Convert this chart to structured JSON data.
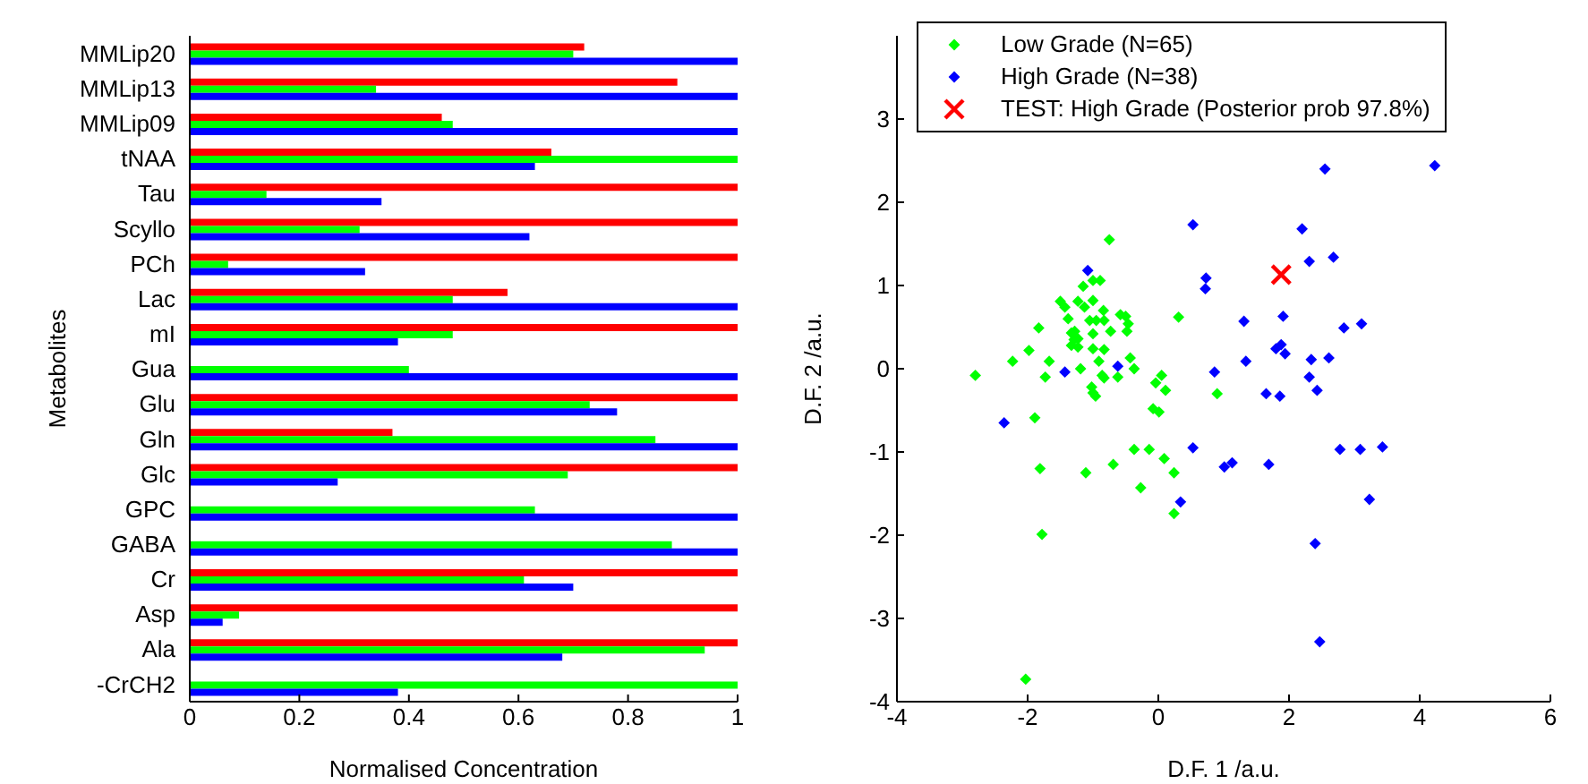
{
  "chart_data": [
    {
      "type": "bar",
      "orientation": "horizontal",
      "xlabel": "Normalised Concentration",
      "ylabel": "Metabolites",
      "categories": [
        "MMLip20",
        "MMLip13",
        "MMLip09",
        "tNAA",
        "Tau",
        "Scyllo",
        "PCh",
        "Lac",
        "mI",
        "Gua",
        "Glu",
        "Gln",
        "Glc",
        "GPC",
        "GABA",
        "Cr",
        "Asp",
        "Ala",
        "-CrCH2"
      ],
      "series": [
        {
          "color": "#ff0000",
          "values": [
            0.72,
            0.89,
            0.46,
            0.66,
            1,
            1,
            1,
            0.58,
            1,
            null,
            1,
            0.37,
            1,
            null,
            null,
            1,
            1,
            1,
            null
          ]
        },
        {
          "color": "#00ff00",
          "values": [
            0.7,
            0.34,
            0.48,
            1,
            0.14,
            0.31,
            0.07,
            0.48,
            0.48,
            0.4,
            0.73,
            0.85,
            0.69,
            0.63,
            0.88,
            0.61,
            0.09,
            0.94,
            1
          ]
        },
        {
          "color": "#0000ff",
          "values": [
            1,
            1,
            1,
            0.63,
            0.35,
            0.62,
            0.32,
            1,
            0.38,
            1,
            0.78,
            1,
            0.27,
            1,
            1,
            0.7,
            0.06,
            0.68,
            0.38
          ]
        }
      ],
      "xlim": [
        0,
        1
      ],
      "xticks": [
        0,
        0.2,
        0.4,
        0.6,
        0.8,
        1
      ],
      "grid": false,
      "legend": false
    },
    {
      "type": "scatter",
      "xlabel": "D.F. 1 /a.u.",
      "ylabel": "D.F. 2 /a.u.",
      "xlim": [
        -4,
        6
      ],
      "xticks": [
        -4,
        -2,
        0,
        2,
        4,
        6
      ],
      "ylim": [
        -4,
        4
      ],
      "yticks": [
        -4,
        -3,
        -2,
        -1,
        0,
        1,
        2,
        3
      ],
      "grid": false,
      "legend": "top",
      "series": [
        {
          "name": "Low Grade (N=65)",
          "color": "#00ff00",
          "marker": "diamond",
          "x": [
            -0.75,
            -1.15,
            -1.0,
            -0.89,
            -1.5,
            -1.43,
            -1.23,
            -1.0,
            -1.13,
            -0.84,
            -1.38,
            -1.05,
            -0.95,
            -0.83,
            -0.58,
            -0.5,
            -0.46,
            -0.73,
            -0.48,
            -1.83,
            -1.33,
            -1.28,
            -1.0,
            -1.29,
            -1.23,
            -1.33,
            -1.23,
            -1.0,
            -0.83,
            -1.98,
            -0.91,
            -0.43,
            -0.37,
            -1.19,
            -0.86,
            -0.83,
            -0.62,
            -1.67,
            -2.23,
            -1.73,
            -2.8,
            -1.02,
            -1.0,
            -0.96,
            -0.04,
            0.05,
            0.11,
            0.31,
            0.9,
            -1.89,
            -0.08,
            0.01,
            -1.81,
            -1.11,
            -0.69,
            -0.37,
            -0.14,
            0.09,
            0.24,
            -0.27,
            0.24,
            -1.78,
            -2.03
          ],
          "values": [
            1.55,
            0.99,
            1.06,
            1.06,
            0.81,
            0.74,
            0.81,
            0.82,
            0.74,
            0.7,
            0.6,
            0.58,
            0.58,
            0.58,
            0.65,
            0.63,
            0.54,
            0.45,
            0.45,
            0.49,
            0.43,
            0.45,
            0.42,
            0.35,
            0.36,
            0.28,
            0.26,
            0.24,
            0.23,
            0.22,
            0.09,
            0.13,
            0.0,
            0.0,
            -0.08,
            -0.11,
            -0.1,
            0.09,
            0.09,
            -0.1,
            -0.08,
            -0.22,
            -0.29,
            -0.33,
            -0.17,
            -0.08,
            -0.26,
            0.62,
            -0.3,
            -0.59,
            -0.48,
            -0.52,
            -1.2,
            -1.25,
            -1.15,
            -0.97,
            -0.97,
            -1.08,
            -1.25,
            -1.43,
            -1.74,
            -1.99,
            -3.73
          ]
        },
        {
          "name": "High Grade (N=38)",
          "color": "#0000ff",
          "marker": "diamond",
          "x": [
            -1.08,
            -1.43,
            -0.62,
            -2.36,
            0.53,
            0.73,
            0.72,
            0.86,
            1.31,
            1.34,
            1.65,
            1.86,
            1.8,
            1.88,
            1.94,
            1.91,
            2.2,
            2.31,
            2.55,
            2.68,
            2.31,
            2.34,
            2.43,
            2.61,
            2.84,
            3.11,
            4.23,
            0.53,
            1.01,
            1.13,
            1.69,
            0.34,
            2.78,
            3.09,
            3.43,
            3.23,
            2.4,
            2.47
          ],
          "values": [
            1.18,
            -0.04,
            0.03,
            -0.65,
            1.73,
            1.09,
            0.96,
            -0.04,
            0.57,
            0.09,
            -0.3,
            -0.33,
            0.24,
            0.29,
            0.18,
            0.63,
            1.68,
            1.29,
            2.4,
            1.34,
            -0.1,
            0.11,
            -0.26,
            0.13,
            0.49,
            0.54,
            2.44,
            -0.95,
            -1.18,
            -1.13,
            -1.15,
            -1.6,
            -0.97,
            -0.97,
            -0.94,
            -1.57,
            -2.1,
            -3.28
          ]
        },
        {
          "name": "TEST: High Grade (Posterior prob 97.8%)",
          "color": "#ff0000",
          "marker": "cross",
          "x": [
            1.88
          ],
          "values": [
            1.13
          ]
        }
      ]
    }
  ]
}
